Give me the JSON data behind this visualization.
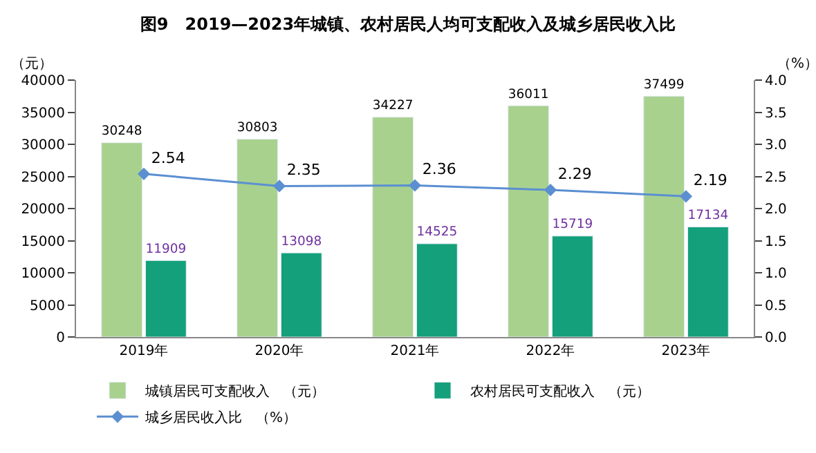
{
  "chart_data": {
    "type": "bar",
    "title": "图9　2019—2023年城镇、农村居民人均可支配收入及城乡居民收入比",
    "ylabel": "（元）",
    "y2label": "（%）",
    "categories": [
      "2019年",
      "2020年",
      "2021年",
      "2022年",
      "2023年"
    ],
    "series": [
      {
        "name": "城镇居民可支配收入　（元）",
        "color": "#a9d18e",
        "values": [
          30248,
          30803,
          34227,
          36011,
          37499
        ]
      },
      {
        "name": "农村居民可支配收入　（元）",
        "color": "#13a07a",
        "values": [
          11909,
          13098,
          14525,
          15719,
          17134
        ]
      },
      {
        "name": "城乡居民收入比　（%）",
        "type": "line",
        "axis": "y2",
        "color": "#5b8fd1",
        "marker": "diamond",
        "values": [
          2.54,
          2.35,
          2.36,
          2.29,
          2.19
        ]
      }
    ],
    "ylim": [
      0,
      40000
    ],
    "yticks": [
      0,
      5000,
      10000,
      15000,
      20000,
      25000,
      30000,
      35000,
      40000
    ],
    "y2lim": [
      0,
      4.0
    ],
    "y2ticks": [
      {
        "value": 0,
        "label": "0.0"
      },
      {
        "value": 0.5,
        "label": "0.5"
      },
      {
        "value": 1,
        "label": "1.0"
      },
      {
        "value": 1.5,
        "label": "1.5"
      },
      {
        "value": 2,
        "label": "2.0"
      },
      {
        "value": 2.5,
        "label": "2.5"
      },
      {
        "value": 3,
        "label": "3.0"
      },
      {
        "value": 3.5,
        "label": "3.5"
      },
      {
        "value": 4,
        "label": "4.0"
      }
    ],
    "data_labels": true,
    "legend": "bottom"
  }
}
